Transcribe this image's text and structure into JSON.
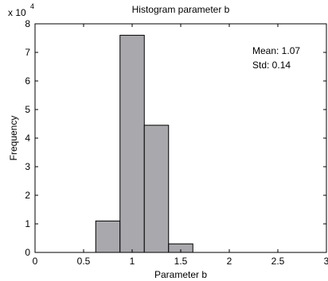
{
  "chart_data": {
    "type": "bar",
    "title": "Histogram parameter b",
    "xlabel": "Parameter b",
    "ylabel": "Frequency",
    "y_scale_label": "x 10",
    "y_scale_exponent": "4",
    "xlim": [
      0,
      3
    ],
    "ylim": [
      0,
      8
    ],
    "x_ticks": [
      "0",
      "0.5",
      "1",
      "1.5",
      "2",
      "2.5",
      "3"
    ],
    "y_ticks": [
      "0",
      "1",
      "2",
      "3",
      "4",
      "5",
      "6",
      "7",
      "8"
    ],
    "bin_width": 0.25,
    "bins": [
      {
        "x0": 0.625,
        "x1": 0.875,
        "value": 1.1
      },
      {
        "x0": 0.875,
        "x1": 1.125,
        "value": 7.6
      },
      {
        "x0": 1.125,
        "x1": 1.375,
        "value": 4.45
      },
      {
        "x0": 1.375,
        "x1": 1.625,
        "value": 0.3
      }
    ],
    "annotations": {
      "mean": "Mean: 1.07",
      "std": "Std: 0.14"
    },
    "grid": false,
    "bar_color": "#a9a9ad",
    "bar_edge_color": "#000000"
  }
}
